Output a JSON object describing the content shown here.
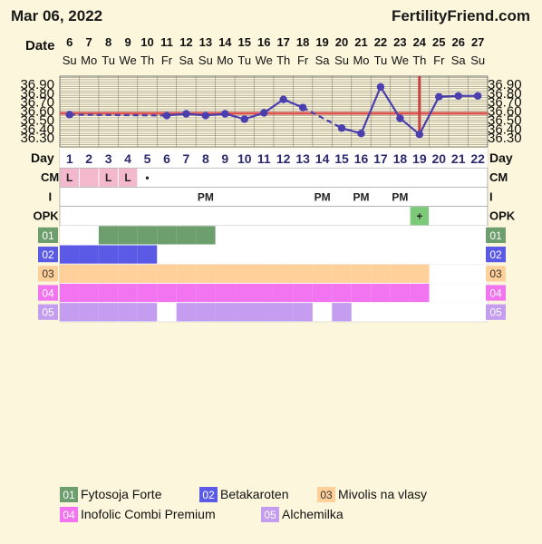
{
  "header": {
    "date": "Mar 06, 2022",
    "site": "FertilityFriend.com",
    "date_label": "Date",
    "day_label": "Day"
  },
  "colors": {
    "background": "#FBF6DC",
    "grid": "#8f8a78",
    "temp_line": "#4B3FB0",
    "coverline": "#D9534F",
    "ovulation_line": "#C94040",
    "cm_fill": "#F3B8CC",
    "opk_positive": "#7CC97A",
    "row_white": "#FFFFFF",
    "row_shade": "#EBEBEB",
    "supp1": "#6D9E6D",
    "supp2": "#5A5AE6",
    "supp3": "#FFD09A",
    "supp4": "#F274F0",
    "supp5": "#C49CF0"
  },
  "chart_data": {
    "type": "line",
    "title": "",
    "x": [
      "6",
      "7",
      "8",
      "9",
      "10",
      "11",
      "12",
      "13",
      "14",
      "15",
      "16",
      "17",
      "18",
      "19",
      "20",
      "21",
      "22",
      "23",
      "24",
      "25",
      "26",
      "27"
    ],
    "weekdays": [
      "Su",
      "Mo",
      "Tu",
      "We",
      "Th",
      "Fr",
      "Sa",
      "Su",
      "Mo",
      "Tu",
      "We",
      "Th",
      "Fr",
      "Sa",
      "Su",
      "Mo",
      "Tu",
      "We",
      "Th",
      "Fr",
      "Sa",
      "Su"
    ],
    "cycle_days": [
      "1",
      "2",
      "3",
      "4",
      "5",
      "6",
      "7",
      "8",
      "9",
      "10",
      "11",
      "12",
      "13",
      "14",
      "15",
      "16",
      "17",
      "18",
      "19",
      "20",
      "21",
      "22"
    ],
    "series": [
      {
        "values": [
          36.56,
          null,
          null,
          null,
          null,
          36.55,
          36.57,
          36.55,
          36.57,
          36.51,
          36.58,
          36.73,
          36.64,
          null,
          36.41,
          36.35,
          36.87,
          36.52,
          36.34,
          36.76,
          36.77,
          36.77
        ],
        "segments": [
          {
            "from": 1,
            "to": 6,
            "style": "dashed"
          },
          {
            "from": 6,
            "to": 13,
            "style": "solid"
          },
          {
            "from": 13,
            "to": 15,
            "style": "dashed"
          },
          {
            "from": 15,
            "to": 22,
            "style": "solid"
          }
        ]
      }
    ],
    "yticks": [
      "36.30",
      "36.40",
      "36.50",
      "36.60",
      "36.70",
      "36.80",
      "36.90"
    ],
    "ylim": [
      36.2,
      36.99
    ],
    "coverline": 36.575,
    "ovulation_day": 19,
    "rows": {
      "cm": {
        "label": "CM",
        "cells": [
          {
            "day": 1,
            "text": "L",
            "fill": true
          },
          {
            "day": 2,
            "text": "",
            "fill": true
          },
          {
            "day": 3,
            "text": "L",
            "fill": true
          },
          {
            "day": 4,
            "text": "L",
            "fill": true
          },
          {
            "day": 5,
            "text": "•",
            "fill": false
          }
        ]
      },
      "i": {
        "label": "I",
        "cells": [
          {
            "day": 8,
            "text": "PM"
          },
          {
            "day": 14,
            "text": "PM"
          },
          {
            "day": 16,
            "text": "PM"
          },
          {
            "day": 18,
            "text": "PM"
          }
        ]
      },
      "opk": {
        "label": "OPK",
        "cells": [
          {
            "day": 19,
            "text": "+"
          }
        ]
      }
    },
    "supplements": [
      {
        "code": "01",
        "name": "Fytosoja Forte",
        "days": [
          3,
          4,
          5,
          6,
          7,
          8
        ]
      },
      {
        "code": "02",
        "name": "Betakaroten",
        "days": [
          1,
          2,
          3,
          4,
          5
        ]
      },
      {
        "code": "03",
        "name": "Mivolis na vlasy",
        "days": [
          1,
          2,
          3,
          4,
          5,
          6,
          7,
          8,
          9,
          10,
          11,
          12,
          13,
          14,
          15,
          16,
          17,
          18,
          19
        ]
      },
      {
        "code": "04",
        "name": "Inofolic Combi Premium",
        "days": [
          1,
          2,
          3,
          4,
          5,
          6,
          7,
          8,
          9,
          10,
          11,
          12,
          13,
          14,
          15,
          16,
          17,
          18,
          19
        ]
      },
      {
        "code": "05",
        "name": "Alchemilka",
        "days": [
          1,
          2,
          3,
          4,
          5,
          7,
          8,
          9,
          10,
          11,
          12,
          13,
          15
        ]
      }
    ]
  }
}
